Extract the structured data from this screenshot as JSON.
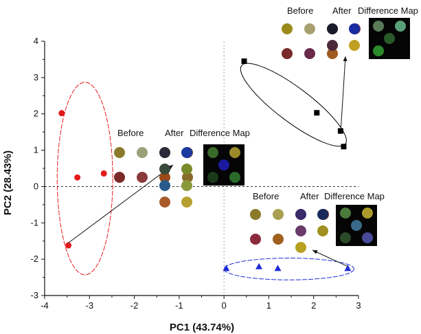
{
  "chart_data": {
    "type": "scatter",
    "xlabel": "PC1 (43.74%)",
    "ylabel": "PC2 (28.43%)",
    "xlim": [
      -4,
      3
    ],
    "ylim": [
      -3,
      4
    ],
    "xticks": [
      -4,
      -3,
      -2,
      -1,
      0,
      1,
      2,
      3
    ],
    "yticks": [
      -3,
      -2,
      -1,
      0,
      1,
      2,
      3,
      4
    ],
    "xtick_labels": [
      "-4",
      "-3",
      "-2",
      "-1",
      "0",
      "1",
      "2",
      "3"
    ],
    "ytick_labels": [
      "-3",
      "-2",
      "-1",
      "0",
      "1",
      "2",
      "3",
      "4"
    ],
    "series": [
      {
        "marker": "circle",
        "color": "#e31a1c",
        "x": [
          -3.62,
          -3.27,
          -2.68,
          -3.47
        ],
        "y": [
          2.02,
          0.25,
          0.36,
          -1.62
        ]
      },
      {
        "marker": "square",
        "color": "#000000",
        "x": [
          0.45,
          2.07,
          2.6,
          2.67
        ],
        "y": [
          3.45,
          2.03,
          1.53,
          1.1
        ]
      },
      {
        "marker": "triangle",
        "color": "#1f2bd6",
        "x": [
          0.05,
          0.78,
          1.2,
          2.76
        ],
        "y": [
          -2.25,
          -2.2,
          -2.25,
          -2.25
        ]
      }
    ],
    "ellipses": [
      {
        "color": "#e31a1c",
        "cx": -3.1,
        "cy": 0.22,
        "rx": 0.62,
        "ry": 2.65,
        "angle": 0
      },
      {
        "color": "#000000",
        "cx": 1.55,
        "cy": 2.25,
        "rx": 1.45,
        "ry": 0.38,
        "angle": 37
      },
      {
        "color": "#1f2bd6",
        "cx": 1.45,
        "cy": -2.27,
        "rx": 1.45,
        "ry": 0.3,
        "angle": 0
      }
    ],
    "insets": [
      {
        "labels": [
          "Before",
          "After",
          "Difference Map"
        ],
        "before_colors": [
          "#8a7a2a",
          "#9aa07a",
          "#a89a28",
          "#7a4a2a",
          "#7a2a2a",
          "#8a3a3a",
          "#9a4a1a",
          "#8a6a2a"
        ],
        "after_colors": [
          "#2a2a3a",
          "#1a3aa0",
          "#3a4a3a",
          "#7a8a2a",
          "#2a5a8a",
          "#8a9a3a",
          "#a85a2a",
          "#b8a030"
        ],
        "diff_colors": [
          "#3a6a2a",
          "#9a8a2a",
          "#1a1aa0",
          "#1a3a1a",
          "#2a6a2a"
        ]
      },
      {
        "labels": [
          "Before",
          "After",
          "Difference Map"
        ],
        "before_colors": [
          "#9a8a1a",
          "#a8a070",
          "#8a8a3a",
          "#7a3a3a",
          "#7a2a2a",
          "#6a2a4a",
          "#a05a20"
        ],
        "after_colors": [
          "#1a1a2a",
          "#1a2aa0",
          "#4a2a3a",
          "#c0a020"
        ],
        "diff_colors": [
          "#5a7a5a",
          "#5aa07a",
          "#2a5a2a",
          "#2a8a2a"
        ]
      },
      {
        "labels": [
          "Before",
          "After",
          "Difference Map"
        ],
        "before_colors": [
          "#8a7a2a",
          "#a8a050",
          "#9aa090",
          "#7a2a2a",
          "#8a2a3a",
          "#a06020"
        ],
        "after_colors": [
          "#3a2a6a",
          "#1a2a5a",
          "#6a3a6a",
          "#a09020",
          "#b8a020"
        ],
        "diff_colors": [
          "#4a7a3a",
          "#aa9a2a",
          "#3a6a8a",
          "#2a4a2a",
          "#4a4a9a"
        ]
      }
    ]
  }
}
